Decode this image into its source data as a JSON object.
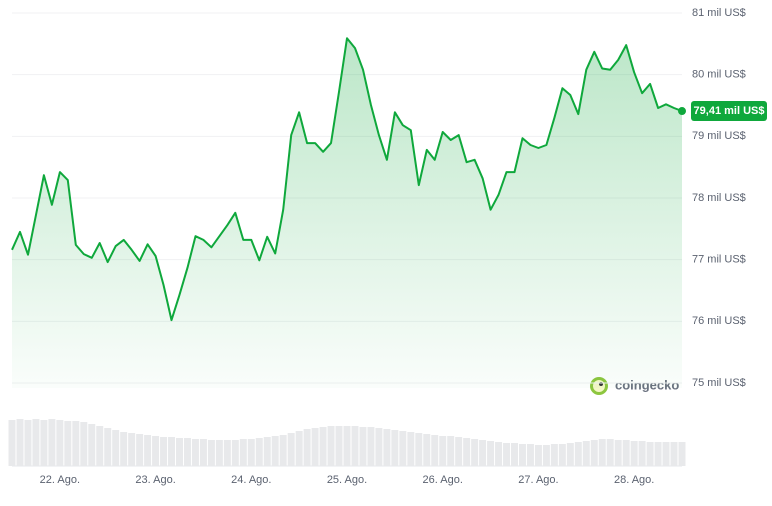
{
  "chart_data": {
    "type": "line",
    "color": "#0fa83c",
    "categories": [
      null,
      null,
      null,
      null,
      null,
      null,
      "22. Ago.",
      null,
      null,
      null,
      null,
      null,
      null,
      null,
      null,
      null,
      null,
      null,
      "23. Ago.",
      null,
      null,
      null,
      null,
      null,
      null,
      null,
      null,
      null,
      null,
      null,
      "24. Ago.",
      null,
      null,
      null,
      null,
      null,
      null,
      null,
      null,
      null,
      null,
      null,
      "25. Ago.",
      null,
      null,
      null,
      null,
      null,
      null,
      null,
      null,
      null,
      null,
      null,
      "26. Ago.",
      null,
      null,
      null,
      null,
      null,
      null,
      null,
      null,
      null,
      null,
      null,
      "27. Ago.",
      null,
      null,
      null,
      null,
      null,
      null,
      null,
      null,
      null,
      null,
      null,
      "28. Ago.",
      null,
      null,
      null,
      null,
      null,
      null
    ],
    "values": [
      77.16,
      77.45,
      77.08,
      77.72,
      78.37,
      77.89,
      78.42,
      78.29,
      77.24,
      77.09,
      77.03,
      77.27,
      76.96,
      77.22,
      77.32,
      77.16,
      76.98,
      77.25,
      77.06,
      76.59,
      76.02,
      76.43,
      76.87,
      77.38,
      77.32,
      77.2,
      77.38,
      77.56,
      77.76,
      77.32,
      77.32,
      76.99,
      77.37,
      77.1,
      77.81,
      79.02,
      79.39,
      78.89,
      78.89,
      78.75,
      78.89,
      79.72,
      80.59,
      80.43,
      80.08,
      79.51,
      79.02,
      78.62,
      79.39,
      79.18,
      79.1,
      78.21,
      78.78,
      78.62,
      79.07,
      78.94,
      79.02,
      78.58,
      78.62,
      78.32,
      77.81,
      78.05,
      78.42,
      78.42,
      78.97,
      78.86,
      78.81,
      78.86,
      79.3,
      79.78,
      79.67,
      79.36,
      80.08,
      80.37,
      80.1,
      80.08,
      80.24,
      80.48,
      80.04,
      79.7,
      79.85,
      79.46,
      79.52,
      79.46,
      79.41
    ],
    "value_labels": [
      null,
      null,
      null,
      null,
      null,
      null,
      null,
      null,
      null,
      null,
      null,
      null,
      null,
      null,
      null,
      null,
      null,
      null,
      null,
      null,
      null,
      null,
      null,
      null,
      null,
      null,
      null,
      null,
      null,
      null,
      null,
      null,
      null,
      null,
      null,
      null,
      null,
      null,
      null,
      null,
      null,
      null,
      null,
      null,
      null,
      null,
      null,
      null,
      null,
      null,
      null,
      null,
      null,
      null,
      null,
      null,
      null,
      null,
      null,
      null,
      null,
      null,
      null,
      null,
      null,
      null,
      null,
      null,
      null,
      null,
      null,
      null,
      null,
      null,
      null,
      null,
      null,
      null,
      null,
      null,
      null,
      null,
      null,
      null,
      "79,41 mil US$"
    ],
    "volume": [
      46,
      47,
      46,
      47,
      46,
      47,
      46,
      45,
      45,
      44,
      42,
      40,
      38,
      36,
      34,
      33,
      32,
      31,
      30,
      29,
      29,
      28,
      28,
      27,
      27,
      26,
      26,
      26,
      26,
      27,
      27,
      28,
      29,
      30,
      31,
      33,
      35,
      37,
      38,
      39,
      40,
      40,
      40,
      40,
      39,
      39,
      38,
      37,
      36,
      35,
      34,
      33,
      32,
      31,
      30,
      30,
      29,
      28,
      27,
      26,
      25,
      24,
      23,
      23,
      22,
      22,
      21,
      21,
      22,
      22,
      23,
      24,
      25,
      26,
      27,
      27,
      26,
      26,
      25,
      25,
      24,
      24,
      24,
      24,
      24
    ],
    "volume_lim": [
      0,
      50
    ],
    "ylim": [
      75,
      81
    ],
    "yticks": [
      {
        "value": 75,
        "label": "75 mil US$"
      },
      {
        "value": 76,
        "label": "76 mil US$"
      },
      {
        "value": 77,
        "label": "77 mil US$"
      },
      {
        "value": 78,
        "label": "78 mil US$"
      },
      {
        "value": 79,
        "label": "79 mil US$"
      },
      {
        "value": 80,
        "label": "80 mil US$"
      },
      {
        "value": 81,
        "label": "81 mil US$"
      }
    ],
    "grid": true,
    "watermark": "coingecko"
  }
}
